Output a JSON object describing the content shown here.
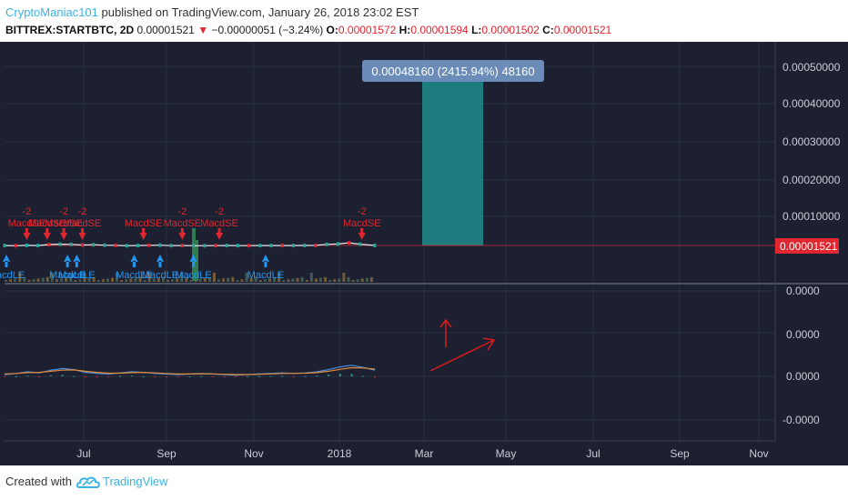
{
  "header": {
    "author": "CryptoManiac101",
    "published_text": "published on TradingView.com, January 26, 2018 23:02 EST",
    "symbol": "BITTREX:STARTBTC, 2D",
    "price": "0.00001521",
    "change_arrow": "▼",
    "change": "−0.00000051 (−3.24%)",
    "o_label": "O:",
    "o_value": "0.00001572",
    "h_label": "H:",
    "h_value": "0.00001594",
    "l_label": "L:",
    "l_value": "0.00001502",
    "c_label": "C:",
    "c_value": "0.00001521"
  },
  "footer": {
    "created_with": "Created with",
    "brand": "TradingView",
    "logo_icon": "tradingview-cloud-icon"
  },
  "colors": {
    "background": "#1C2030",
    "grid": "#2A3142",
    "up": "#2196F3",
    "down": "#E0262F",
    "range_fill": "#1E8C8C",
    "price_line": "#E0262F",
    "annotation_arrow": "#D81B1B"
  },
  "chart_data": [
    {
      "type": "line",
      "panel": "price",
      "y_ticks": [
        "0.00050000",
        "0.00040000",
        "0.00030000",
        "0.00020000",
        "0.00010000"
      ],
      "current_price_label": "0.00001521",
      "measure_label": "0.00048160 (2415.94%) 48160",
      "x_tick_labels": [
        "Jul",
        "Sep",
        "Nov",
        "2018",
        "Mar",
        "May",
        "Jul",
        "Sep",
        "Nov"
      ],
      "price_series": [
        {
          "t": 0,
          "v": 1.5e-05
        },
        {
          "t": 0.03,
          "v": 1.45e-05
        },
        {
          "t": 0.06,
          "v": 1.55e-05
        },
        {
          "t": 0.09,
          "v": 1.5e-05
        },
        {
          "t": 0.12,
          "v": 1.75e-05
        },
        {
          "t": 0.15,
          "v": 1.85e-05
        },
        {
          "t": 0.18,
          "v": 1.8e-05
        },
        {
          "t": 0.21,
          "v": 1.65e-05
        },
        {
          "t": 0.24,
          "v": 1.7e-05
        },
        {
          "t": 0.27,
          "v": 1.6e-05
        },
        {
          "t": 0.3,
          "v": 1.55e-05
        },
        {
          "t": 0.33,
          "v": 1.45e-05
        },
        {
          "t": 0.36,
          "v": 1.5e-05
        },
        {
          "t": 0.39,
          "v": 1.58e-05
        },
        {
          "t": 0.42,
          "v": 1.6e-05
        },
        {
          "t": 0.45,
          "v": 1.48e-05
        },
        {
          "t": 0.48,
          "v": 1.5e-05
        },
        {
          "t": 0.51,
          "v": 1.45e-05
        },
        {
          "t": 0.54,
          "v": 1.45e-05
        },
        {
          "t": 0.57,
          "v": 1.48e-05
        },
        {
          "t": 0.6,
          "v": 1.5e-05
        },
        {
          "t": 0.63,
          "v": 1.48e-05
        },
        {
          "t": 0.66,
          "v": 1.47e-05
        },
        {
          "t": 0.69,
          "v": 1.5e-05
        },
        {
          "t": 0.72,
          "v": 1.5e-05
        },
        {
          "t": 0.75,
          "v": 1.5e-05
        },
        {
          "t": 0.78,
          "v": 1.5e-05
        },
        {
          "t": 0.81,
          "v": 1.52e-05
        },
        {
          "t": 0.84,
          "v": 1.55e-05
        },
        {
          "t": 0.87,
          "v": 1.8e-05
        },
        {
          "t": 0.9,
          "v": 1.9e-05
        },
        {
          "t": 0.93,
          "v": 2.2e-05
        },
        {
          "t": 0.96,
          "v": 1.85e-05
        },
        {
          "t": 1,
          "v": 1.52e-05
        }
      ],
      "signals": [
        {
          "label": "MacdSE",
          "num": "-2",
          "kind": "sell",
          "t": 0.06
        },
        {
          "label": "MacdSE",
          "num": "-2",
          "kind": "sell",
          "t": 0.16
        },
        {
          "label": "MacdSE",
          "num": "-2",
          "kind": "sell",
          "t": 0.21
        },
        {
          "label": "MacdSE",
          "num": "",
          "kind": "sell",
          "t": 0.115
        },
        {
          "label": "MacdSE",
          "num": "",
          "kind": "sell",
          "t": 0.375
        },
        {
          "label": "MacdSE",
          "num": "-2",
          "kind": "sell",
          "t": 0.48
        },
        {
          "label": "MacdSE",
          "num": "-2",
          "kind": "sell",
          "t": 0.58
        },
        {
          "label": "MacdSE",
          "num": "-2",
          "kind": "sell",
          "t": 0.965
        },
        {
          "label": "MacdLE",
          "kind": "buy",
          "t": 0.005
        },
        {
          "label": "MacdLE",
          "kind": "buy",
          "t": 0.17
        },
        {
          "label": "MacdLE",
          "kind": "buy",
          "t": 0.195
        },
        {
          "label": "MacdLE",
          "kind": "buy",
          "t": 0.35
        },
        {
          "label": "MacdLE",
          "kind": "buy",
          "t": 0.42
        },
        {
          "label": "MacdLE",
          "kind": "buy",
          "t": 0.51
        },
        {
          "label": "MacdLE",
          "kind": "buy",
          "t": 0.705
        }
      ]
    },
    {
      "type": "line",
      "panel": "macd",
      "y_ticks": [
        "0.0000",
        "0.0000",
        "0.0000",
        "-0.0000"
      ],
      "series": [
        {
          "values": [
            0,
            0.2,
            0.5,
            0.3,
            0.8,
            1.1,
            0.9,
            0.4,
            0.2,
            0.1,
            0.3,
            0.5,
            0.4,
            0.2,
            0.1,
            0.0,
            0.1,
            0.2,
            0.1,
            0.0,
            -0.1,
            0.0,
            0.1,
            0.2,
            0.3,
            0.2,
            0.3,
            0.5,
            0.9,
            1.4,
            1.7,
            1.3,
            0.8
          ]
        },
        {
          "values": [
            0.1,
            0.2,
            0.35,
            0.4,
            0.6,
            0.8,
            0.85,
            0.6,
            0.4,
            0.25,
            0.25,
            0.35,
            0.4,
            0.3,
            0.2,
            0.1,
            0.1,
            0.15,
            0.12,
            0.05,
            0.0,
            0.0,
            0.05,
            0.12,
            0.2,
            0.22,
            0.25,
            0.35,
            0.6,
            0.95,
            1.25,
            1.2,
            1.0
          ]
        }
      ]
    }
  ]
}
